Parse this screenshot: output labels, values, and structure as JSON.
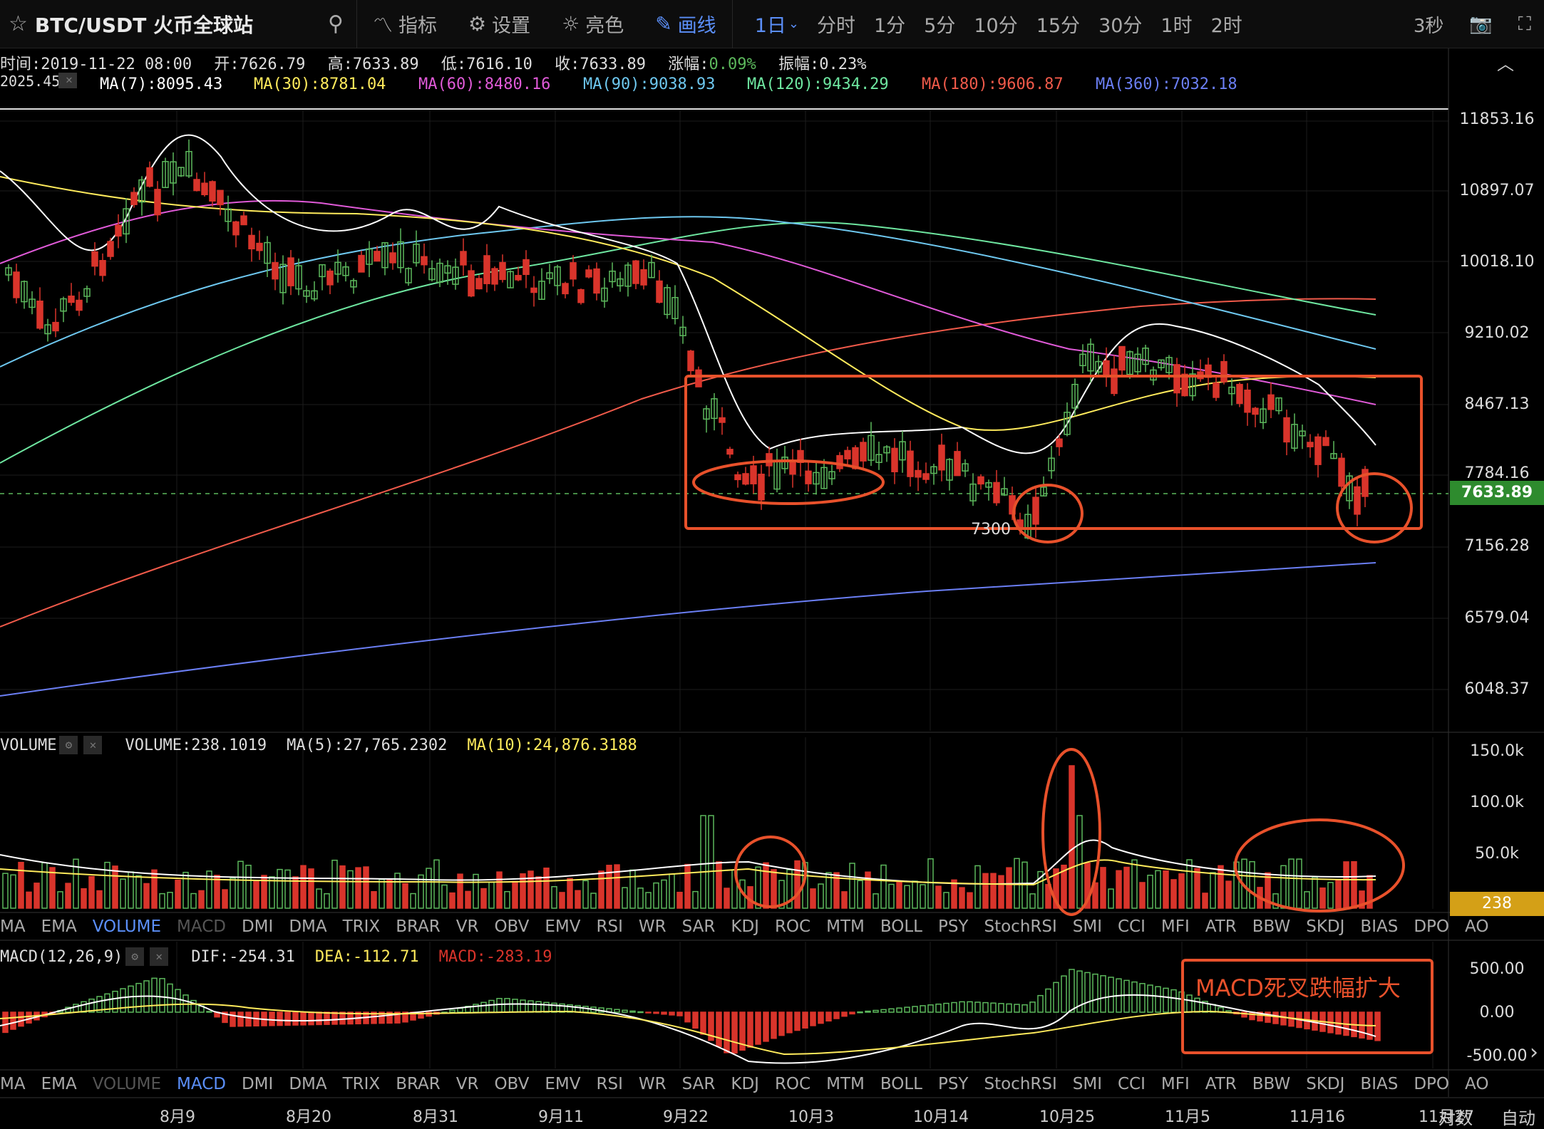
{
  "toolbar": {
    "title": "BTC/USDT 火币全球站",
    "indicators_label": "指标",
    "settings_label": "设置",
    "theme_label": "亮色",
    "draw_label": "画线",
    "intervals": [
      "1日",
      "分时",
      "1分",
      "5分",
      "10分",
      "15分",
      "30分",
      "1时",
      "2时"
    ],
    "active_interval": "1日",
    "refresh_label": "3秒"
  },
  "ohlc": {
    "time": "时间:2019-11-22 08:00",
    "open": "开:7626.79",
    "high": "高:7633.89",
    "low": "低:7616.10",
    "close": "收:7633.89",
    "change_label": "涨幅:",
    "change_value": "0.09%",
    "amplitude": "振幅:0.23%"
  },
  "ma_legend": {
    "overlap": "MA(7)",
    "cut_value": "2025.45",
    "ma7": "MA(7):8095.43",
    "ma30": "MA(30):8781.04",
    "ma60": "MA(60):8480.16",
    "ma90": "MA(90):9038.93",
    "ma120": "MA(120):9434.29",
    "ma180": "MA(180):9606.87",
    "ma360": "MA(360):7032.18"
  },
  "price_axis": [
    "11853.16",
    "10897.07",
    "10018.10",
    "9210.02",
    "8467.13",
    "7784.16",
    "7156.28",
    "6579.04",
    "6048.37"
  ],
  "current_price": "7633.89",
  "annotation_7300": "7300",
  "volume_legend": {
    "title": "VOLUME",
    "volume": "VOLUME:238.1019",
    "ma5": "MA(5):27,765.2302",
    "ma10": "MA(10):24,876.3188"
  },
  "volume_axis": [
    "150.0k",
    "100.0k",
    "50.0k"
  ],
  "current_volume": "238",
  "indicator_tabs_1": [
    "MA",
    "EMA",
    "VOLUME",
    "MACD",
    "DMI",
    "DMA",
    "TRIX",
    "BRAR",
    "VR",
    "OBV",
    "EMV",
    "RSI",
    "WR",
    "SAR",
    "KDJ",
    "ROC",
    "MTM",
    "BOLL",
    "PSY",
    "StochRSI",
    "SMI",
    "CCI",
    "MFI",
    "ATR",
    "BBW",
    "SKDJ",
    "BIAS",
    "DPO",
    "AO"
  ],
  "indicator_tabs_2": [
    "MA",
    "EMA",
    "VOLUME",
    "MACD",
    "DMI",
    "DMA",
    "TRIX",
    "BRAR",
    "VR",
    "OBV",
    "EMV",
    "RSI",
    "WR",
    "SAR",
    "KDJ",
    "ROC",
    "MTM",
    "BOLL",
    "PSY",
    "StochRSI",
    "SMI",
    "CCI",
    "MFI",
    "ATR",
    "BBW",
    "SKDJ",
    "BIAS",
    "DPO",
    "AO"
  ],
  "macd_legend": {
    "title": "MACD(12,26,9)",
    "dif": "DIF:-254.31",
    "dea": "DEA:-112.71",
    "macd": "MACD:-283.19"
  },
  "macd_axis": [
    "500.00",
    "0.00",
    "-500.00"
  ],
  "macd_annotation": "MACD死叉跌幅扩大",
  "date_axis": [
    "8月9",
    "8月20",
    "8月31",
    "9月11",
    "9月22",
    "10月3",
    "10月14",
    "10月25",
    "11月5",
    "11月16",
    "11月27"
  ],
  "bottom_right": {
    "log_label": "对数",
    "auto_label": "自动"
  },
  "colors": {
    "up": "#5cb85c",
    "down": "#d9342b",
    "ma7": "#ffffff",
    "ma30": "#ffeb5c",
    "ma60": "#e05ad8",
    "ma90": "#6ec8f0",
    "ma120": "#6ee6a0",
    "ma180": "#f05a4a",
    "ma360": "#6b7ff5",
    "annotation": "#e8512b",
    "accent": "#5b8ff9"
  }
}
